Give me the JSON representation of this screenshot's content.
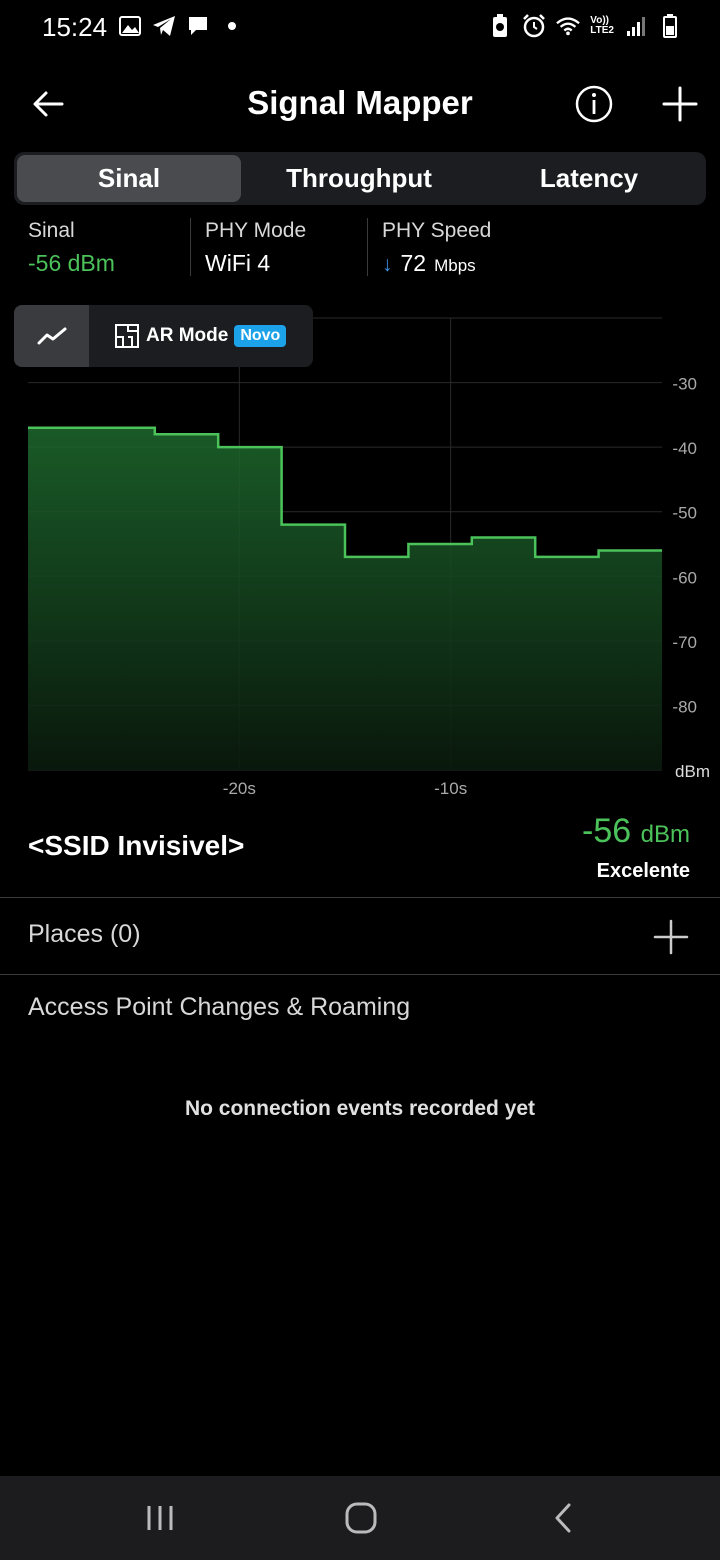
{
  "status_bar": {
    "time": "15:24",
    "left_icons": [
      "image-icon",
      "telegram-icon",
      "chat-icon",
      "dot-icon"
    ],
    "right_icons": [
      "battery-saver-icon",
      "alarm-icon",
      "wifi-icon",
      "volte-icon",
      "signal-icon",
      "battery-icon"
    ],
    "volte_text": "Vo))\nLTE2"
  },
  "header": {
    "title": "Signal Mapper"
  },
  "tabs": [
    {
      "label": "Sinal",
      "active": true
    },
    {
      "label": "Throughput",
      "active": false
    },
    {
      "label": "Latency",
      "active": false
    }
  ],
  "metrics": {
    "signal": {
      "label": "Sinal",
      "value": "-56 dBm",
      "color": "#4bc25a"
    },
    "phy_mode": {
      "label": "PHY Mode",
      "value": "WiFi 4"
    },
    "phy_speed": {
      "label": "PHY Speed",
      "arrow": "↓",
      "value": "72",
      "unit": "Mbps"
    }
  },
  "mode_toggle": {
    "ar_label": "AR Mode",
    "badge": "Novo"
  },
  "chart_data": {
    "type": "area",
    "x_ticks": [
      "-20s",
      "-10s"
    ],
    "y_ticks": [
      "-30",
      "-40",
      "-50",
      "-60",
      "-70",
      "-80"
    ],
    "y_unit": "dBm",
    "ylim": [
      -90,
      -20
    ],
    "xlim": [
      -30,
      0
    ],
    "x": [
      -30,
      -24,
      -21,
      -18,
      -15,
      -12,
      -9,
      -6,
      -3,
      0
    ],
    "values": [
      -37,
      -38,
      -40,
      -52,
      -57,
      -55,
      -54,
      -57,
      -56,
      -56
    ],
    "line_color": "#4bc25a",
    "grid": true
  },
  "network": {
    "ssid": "<SSID Invisivel>",
    "signal_value": "-56",
    "signal_unit": "dBm",
    "quality": "Excelente"
  },
  "places": {
    "label": "Places (0)"
  },
  "ap_changes": {
    "title": "Access Point Changes & Roaming",
    "empty_message": "No connection events recorded yet"
  }
}
